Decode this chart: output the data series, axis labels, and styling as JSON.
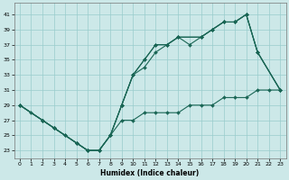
{
  "title": "",
  "xlabel": "Humidex (Indice chaleur)",
  "bg_color": "#cce8e8",
  "grid_color": "#99cccc",
  "line_color": "#1a6655",
  "xlim": [
    -0.5,
    23.5
  ],
  "ylim": [
    22,
    42.5
  ],
  "xticks": [
    0,
    1,
    2,
    3,
    4,
    5,
    6,
    7,
    8,
    9,
    10,
    11,
    12,
    13,
    14,
    15,
    16,
    17,
    18,
    19,
    20,
    21,
    22,
    23
  ],
  "yticks": [
    23,
    25,
    27,
    29,
    31,
    33,
    35,
    37,
    39,
    41
  ],
  "upper1_x": [
    0,
    2,
    3,
    4,
    5,
    6,
    7,
    8,
    9,
    10,
    11,
    12,
    13,
    14,
    15,
    16,
    17,
    18,
    19,
    20,
    21,
    23
  ],
  "upper1_y": [
    29,
    27,
    26,
    25,
    24,
    23,
    23,
    25,
    29,
    33,
    35,
    37,
    37,
    38,
    37,
    38,
    39,
    40,
    40,
    41,
    36,
    31
  ],
  "upper2_x": [
    0,
    2,
    3,
    5,
    6,
    7,
    8,
    9,
    10,
    11,
    12,
    13,
    14,
    16,
    17,
    18,
    19,
    20,
    21,
    23
  ],
  "upper2_y": [
    29,
    27,
    26,
    24,
    23,
    23,
    25,
    29,
    33,
    35,
    37,
    37,
    38,
    38,
    39,
    40,
    40,
    41,
    36,
    31
  ],
  "upper3_x": [
    0,
    2,
    3,
    5,
    6,
    7,
    8,
    9,
    10,
    11,
    12,
    13,
    14,
    16,
    17,
    18,
    19,
    20,
    21,
    23
  ],
  "upper3_y": [
    29,
    27,
    26,
    24,
    23,
    23,
    25,
    29,
    33,
    34,
    36,
    37,
    38,
    38,
    39,
    40,
    40,
    41,
    36,
    31
  ],
  "lower_x": [
    0,
    1,
    2,
    3,
    4,
    5,
    6,
    7,
    8,
    9,
    10,
    11,
    12,
    13,
    14,
    15,
    16,
    17,
    18,
    19,
    20,
    21,
    22,
    23
  ],
  "lower_y": [
    29,
    28,
    27,
    26,
    25,
    24,
    23,
    23,
    25,
    27,
    27,
    28,
    28,
    28,
    28,
    29,
    29,
    29,
    30,
    30,
    30,
    31,
    31,
    31
  ]
}
